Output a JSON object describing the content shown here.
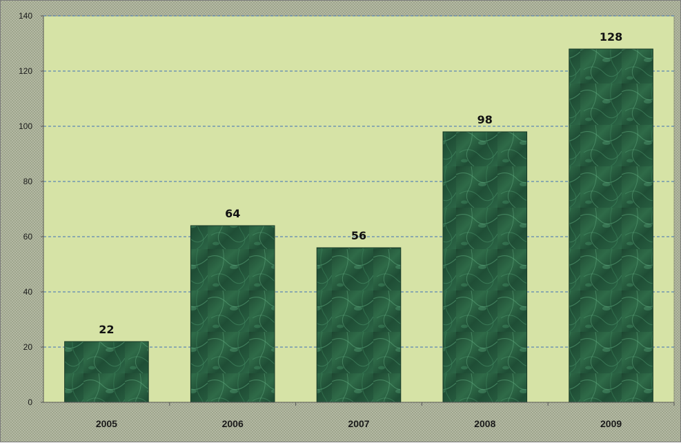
{
  "chart_data": {
    "type": "bar",
    "categories": [
      "2005",
      "2006",
      "2007",
      "2008",
      "2009"
    ],
    "values": [
      22,
      64,
      56,
      98,
      128
    ],
    "data_labels": [
      "22",
      "64",
      "56",
      "98",
      "128"
    ],
    "title": "",
    "xlabel": "",
    "ylabel": "",
    "ylim": [
      0,
      140
    ],
    "yticks": [
      "0",
      "20",
      "40",
      "60",
      "80",
      "100",
      "120",
      "140"
    ],
    "grid": "horizontal dashed",
    "legend": "none",
    "colors": {
      "plot_background": "#d6e3a6",
      "bar_fill_dark": "#1f4a33",
      "bar_fill_light": "#3f8a5f",
      "gridline": "#3e6fb5"
    }
  }
}
